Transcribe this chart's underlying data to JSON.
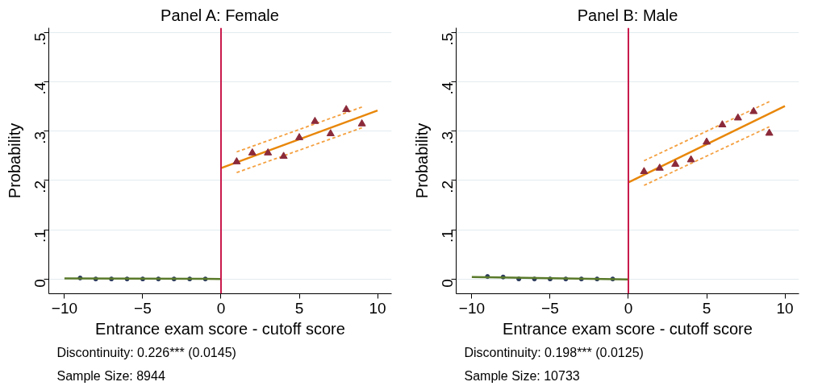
{
  "chart_data": [
    {
      "type": "scatter",
      "title": "Panel A: Female",
      "xlabel": "Entrance exam score - cutoff score",
      "ylabel": "Probability",
      "xlim": [
        -11,
        10.9
      ],
      "ylim": [
        -0.03,
        0.51
      ],
      "xticks": [
        -10,
        -5,
        0,
        5,
        10
      ],
      "yticks": [
        {
          "value": 0,
          "label": "0"
        },
        {
          "value": 0.1,
          "label": ".1"
        },
        {
          "value": 0.2,
          "label": ".2"
        },
        {
          "value": 0.3,
          "label": ".3"
        },
        {
          "value": 0.4,
          "label": ".4"
        },
        {
          "value": 0.5,
          "label": ".5"
        }
      ],
      "grid": "y",
      "ref_lines": [
        {
          "axis": "x",
          "value": 0,
          "label": null,
          "color": "#c8184a"
        }
      ],
      "series": [
        {
          "marker": "circle",
          "color": "#2b3a5c",
          "x": [
            -9,
            -8,
            -7,
            -6,
            -5,
            -4,
            -3,
            -2,
            -1
          ],
          "values": [
            0.002,
            0.0,
            0.0,
            0.0,
            0.0,
            0.0,
            0.0,
            0.0,
            0.0
          ]
        },
        {
          "type": "line",
          "line_style": "solid",
          "color": "#5a7a2a",
          "x": [
            -10,
            0
          ],
          "values": [
            0.001,
            0.0
          ]
        },
        {
          "type": "line",
          "line_style": "dashed",
          "color": "#f4a040",
          "x": [
            1,
            9
          ],
          "values": [
            0.258,
            0.349
          ]
        },
        {
          "type": "line",
          "line_style": "dashed",
          "color": "#f4a040",
          "x": [
            1,
            9
          ],
          "values": [
            0.216,
            0.307
          ]
        },
        {
          "type": "line",
          "line_style": "solid",
          "color": "#e8870a",
          "x": [
            0,
            10
          ],
          "values": [
            0.225,
            0.342
          ]
        },
        {
          "marker": "triangle",
          "color": "#8b2a3a",
          "x": [
            1,
            2,
            3,
            4,
            5,
            6,
            7,
            8,
            9
          ],
          "values": [
            0.238,
            0.256,
            0.256,
            0.249,
            0.287,
            0.32,
            0.295,
            0.344,
            0.315
          ]
        }
      ],
      "annotations": [
        "Discontinuity: 0.226*** (0.0145)",
        "Sample Size: 8944"
      ]
    },
    {
      "type": "scatter",
      "title": "Panel B: Male",
      "xlabel": "Entrance exam score - cutoff score",
      "ylabel": "Probability",
      "xlim": [
        -11,
        10.9
      ],
      "ylim": [
        -0.03,
        0.51
      ],
      "xticks": [
        -10,
        -5,
        0,
        5,
        10
      ],
      "yticks": [
        {
          "value": 0,
          "label": "0"
        },
        {
          "value": 0.1,
          "label": ".1"
        },
        {
          "value": 0.2,
          "label": ".2"
        },
        {
          "value": 0.3,
          "label": ".3"
        },
        {
          "value": 0.4,
          "label": ".4"
        },
        {
          "value": 0.5,
          "label": ".5"
        }
      ],
      "grid": "y",
      "ref_lines": [
        {
          "axis": "x",
          "value": 0,
          "label": null,
          "color": "#c8184a"
        }
      ],
      "series": [
        {
          "marker": "circle",
          "color": "#2b3a5c",
          "x": [
            -9,
            -8,
            -7,
            -6,
            -5,
            -4,
            -3,
            -2,
            -1
          ],
          "values": [
            0.005,
            0.004,
            0.0,
            0.0,
            0.0,
            0.0,
            0.0,
            0.0,
            0.0
          ]
        },
        {
          "type": "line",
          "line_style": "solid",
          "color": "#5a7a2a",
          "x": [
            -10,
            0
          ],
          "values": [
            0.004,
            -0.001
          ]
        },
        {
          "type": "line",
          "line_style": "dashed",
          "color": "#f4a040",
          "x": [
            1,
            9
          ],
          "values": [
            0.24,
            0.36
          ]
        },
        {
          "type": "line",
          "line_style": "dashed",
          "color": "#f4a040",
          "x": [
            1,
            9
          ],
          "values": [
            0.19,
            0.309
          ]
        },
        {
          "type": "line",
          "line_style": "solid",
          "color": "#e8870a",
          "x": [
            0,
            10
          ],
          "values": [
            0.196,
            0.351
          ]
        },
        {
          "marker": "triangle",
          "color": "#8b2a3a",
          "x": [
            1,
            2,
            3,
            4,
            5,
            6,
            7,
            8,
            9
          ],
          "values": [
            0.218,
            0.225,
            0.233,
            0.242,
            0.278,
            0.313,
            0.327,
            0.34,
            0.296
          ]
        }
      ],
      "annotations": [
        "Discontinuity: 0.198*** (0.0125)",
        "Sample Size: 10733"
      ]
    }
  ]
}
